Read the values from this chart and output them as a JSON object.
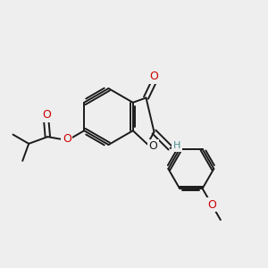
{
  "bg_color": "#eeeeee",
  "bond_color": "#1a1a1a",
  "O_color": "#cc0000",
  "H_color": "#4a8a8a",
  "figsize": [
    3.0,
    3.0
  ],
  "dpi": 100,
  "xlim": [
    0,
    10
  ],
  "ylim": [
    0,
    10
  ]
}
